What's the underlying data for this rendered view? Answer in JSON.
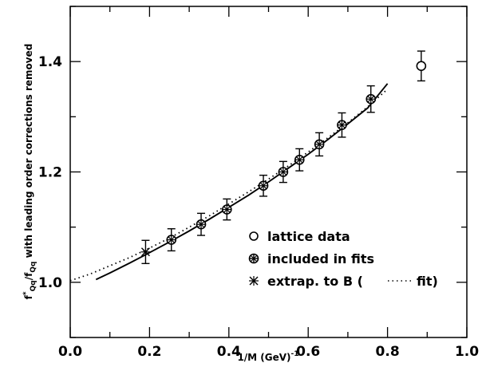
{
  "chart_data": {
    "type": "scatter",
    "title": "",
    "xlabel": "1/M (GeV)",
    "xlabel_exponent": "-1",
    "ylabel": "f*Qq/fQq with leading order corrections removed",
    "ylabel_parts": {
      "f1": "f",
      "sup1": "*",
      "sub1": "Qq",
      "mid": "/f",
      "sub2": "Qq",
      "rest": " with leading order corrections removed"
    },
    "xlim": [
      0.0,
      1.0
    ],
    "ylim": [
      0.9,
      1.5
    ],
    "x_ticks": [
      "0.0",
      "0.2",
      "0.4",
      "0.6",
      "0.8",
      "1.0"
    ],
    "y_ticks": [
      "1.0",
      "1.2",
      "1.4"
    ],
    "grid": false,
    "legend_position": "lower-right",
    "legend": [
      {
        "marker": "open-circle",
        "label": "lattice data"
      },
      {
        "marker": "circle-cross",
        "label": "included in fits"
      },
      {
        "marker": "star-cross",
        "label": "extrap. to B (",
        "fit_label": "fit)"
      }
    ],
    "series": [
      {
        "name": "lattice data",
        "x": [
          0.885
        ],
        "y": [
          1.392
        ],
        "err": [
          0.027
        ]
      },
      {
        "name": "included in fits",
        "x": [
          0.255,
          0.33,
          0.395,
          0.487,
          0.537,
          0.578,
          0.628,
          0.685,
          0.758
        ],
        "y": [
          1.077,
          1.105,
          1.132,
          1.175,
          1.2,
          1.222,
          1.25,
          1.285,
          1.332
        ],
        "err": [
          0.02,
          0.02,
          0.019,
          0.019,
          0.019,
          0.02,
          0.021,
          0.022,
          0.024
        ]
      },
      {
        "name": "extrap. to B",
        "x": [
          0.19
        ],
        "y": [
          1.055
        ],
        "err": [
          0.021
        ]
      },
      {
        "name": "fit (solid)",
        "x": [
          0.065,
          0.1,
          0.15,
          0.19,
          0.25,
          0.3,
          0.35,
          0.4,
          0.45,
          0.5,
          0.55,
          0.6,
          0.65,
          0.7,
          0.75,
          0.8
        ],
        "y": [
          1.005,
          1.017,
          1.035,
          1.05,
          1.073,
          1.093,
          1.114,
          1.136,
          1.158,
          1.182,
          1.207,
          1.232,
          1.259,
          1.287,
          1.316,
          1.36
        ]
      },
      {
        "name": "fit (dotted)",
        "x": [
          0.0,
          0.05,
          0.1,
          0.15,
          0.2,
          0.25,
          0.3,
          0.35,
          0.4,
          0.45,
          0.5,
          0.55,
          0.6,
          0.65,
          0.7,
          0.75,
          0.8
        ],
        "y": [
          1.003,
          1.015,
          1.03,
          1.045,
          1.062,
          1.08,
          1.1,
          1.12,
          1.142,
          1.164,
          1.187,
          1.211,
          1.236,
          1.262,
          1.289,
          1.318,
          1.35
        ]
      }
    ]
  }
}
